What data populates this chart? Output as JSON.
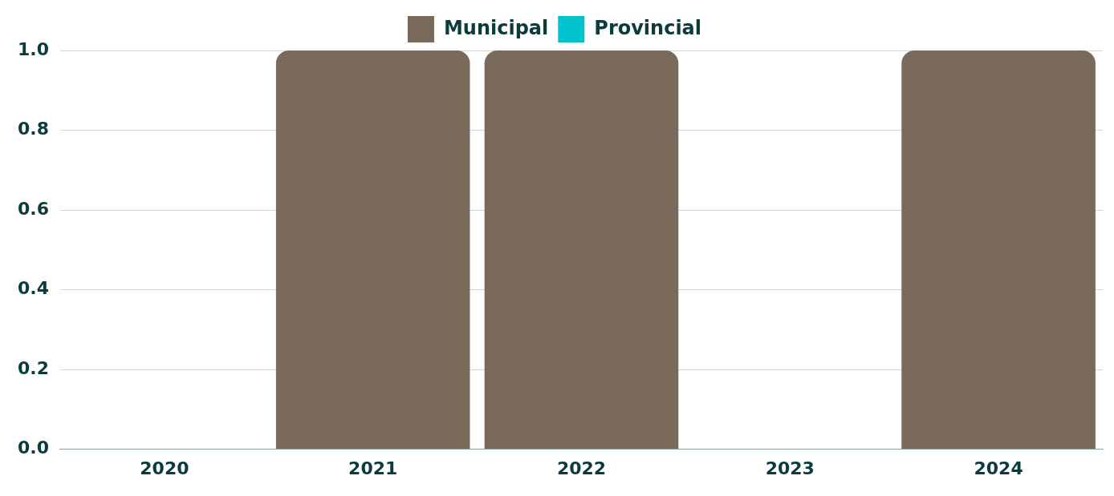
{
  "chart_data": {
    "type": "bar",
    "categories": [
      "2020",
      "2021",
      "2022",
      "2023",
      "2024"
    ],
    "series": [
      {
        "name": "Municipal",
        "color": "#7a6a5b",
        "values": [
          0,
          1,
          1,
          0,
          1
        ]
      },
      {
        "name": "Provincial",
        "color": "#00c2cc",
        "values": [
          0,
          0,
          0,
          0,
          0
        ]
      }
    ],
    "stacked": true,
    "ylim": [
      0,
      1
    ],
    "yticks": [
      {
        "value": 0,
        "label": "0.0"
      },
      0.2,
      0.4,
      0.6,
      0.8,
      {
        "value": 1,
        "label": "1.0"
      }
    ],
    "grid": "y",
    "legend": "top"
  }
}
